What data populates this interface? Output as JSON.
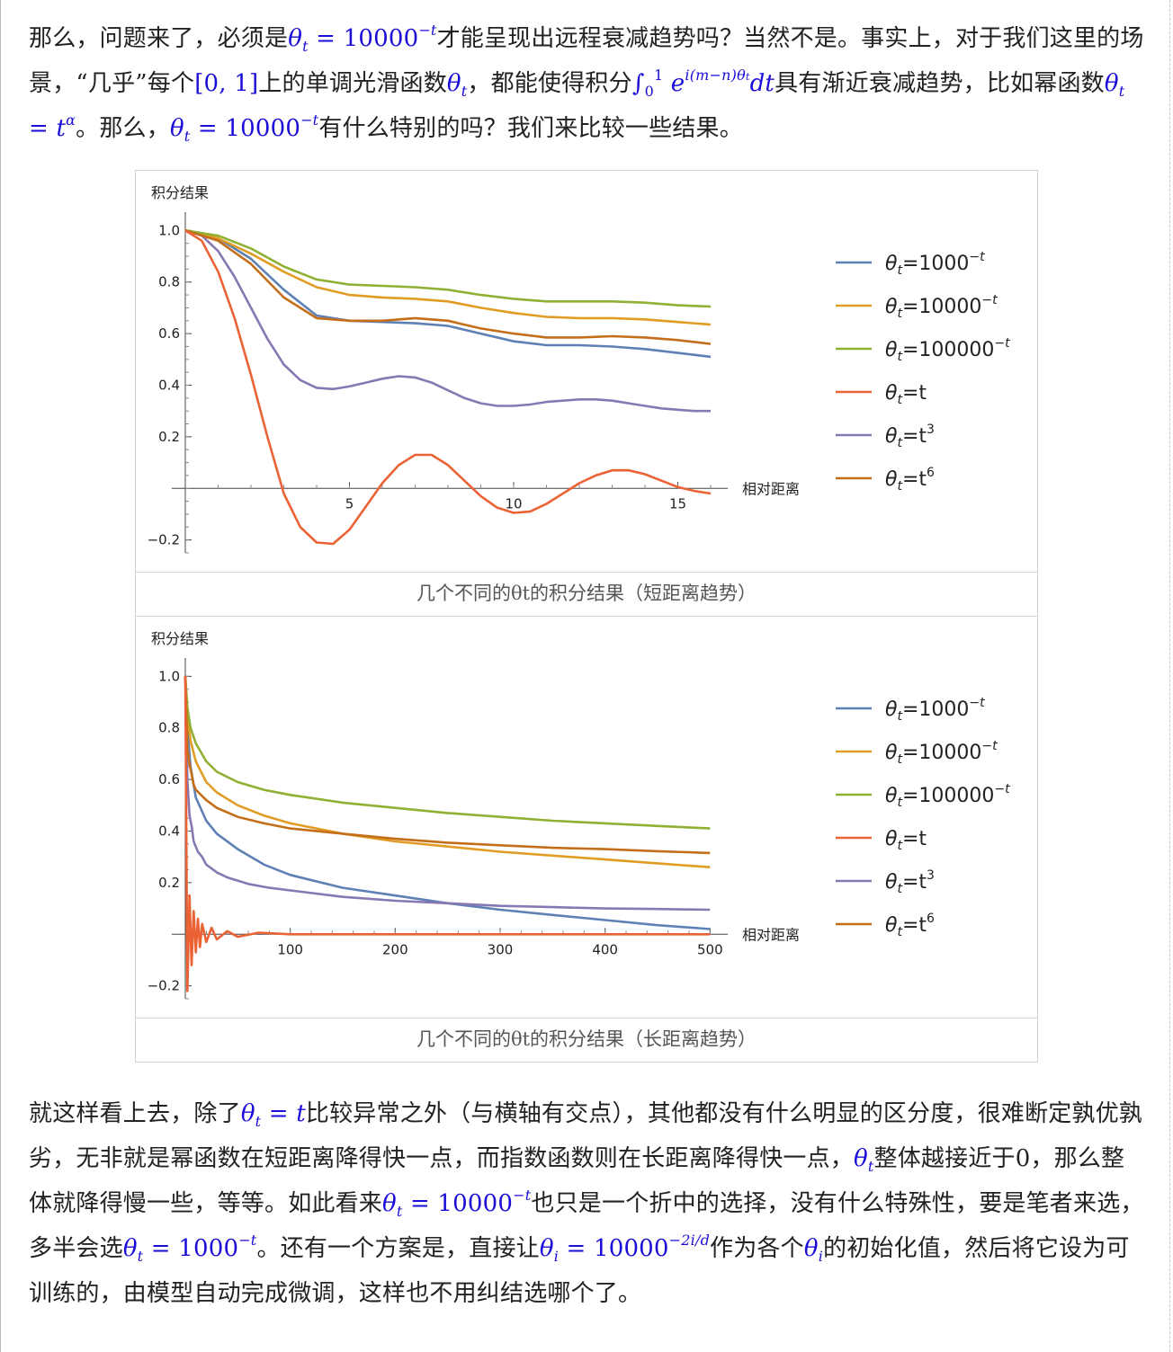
{
  "paragraph1": {
    "t1": "那么，问题来了，必须是",
    "m1": "θ",
    "m1sub": "t",
    "m1eq": " = 10000",
    "m1sup": "−t",
    "t2": "才能呈现出远程衰减趋势吗？当然不是。事实上，对于我们这里的场景，“几乎”每个",
    "m2": "[0, 1]",
    "t3": "上的单调光滑函数",
    "m3": "θ",
    "m3sub": "t",
    "t4": "，都能使得积分",
    "m4": "∫",
    "m4lim_lo": "0",
    "m4lim_hi": "1",
    "m4e": " e",
    "m4sup": "i(m−n)θ",
    "m4supsub": "t",
    "m4dt": "dt",
    "t5": "具有渐近衰减趋势，比如幂函数",
    "m5": "θ",
    "m5sub": "t",
    "m5eq": " = t",
    "m5sup": "α",
    "t6": "。那么，",
    "m6": "θ",
    "m6sub": "t",
    "m6eq": " = 10000",
    "m6sup": "−t",
    "t7": "有什么特别的吗？我们来比较一些结果。"
  },
  "figure1": {
    "caption": "几个不同的θt的积分结果（短距离趋势）",
    "chart_data": {
      "type": "line",
      "title": "",
      "ylabel": "积分结果",
      "xlabel": "相对距离",
      "xlim": [
        0,
        16.3
      ],
      "ylim": [
        -0.25,
        1.05
      ],
      "xticks": [
        5,
        10,
        15
      ],
      "yticks": [
        1.0,
        0.8,
        0.6,
        0.4,
        0.2,
        -0.2
      ],
      "ytick_labels": [
        "1.0",
        "0.8",
        "0.6",
        "0.4",
        "0.2",
        "−0.2"
      ],
      "xtick_labels": [
        "5",
        "10",
        "15"
      ],
      "legend_position": "right",
      "series": [
        {
          "name": "θt=1000^-t",
          "legend_base": "=1000",
          "legend_sup": "−t",
          "color": "#5e81b5",
          "x": [
            0,
            1,
            2,
            3,
            4,
            5,
            6,
            7,
            8,
            9,
            10,
            11,
            12,
            13,
            14,
            15,
            16
          ],
          "y": [
            1.0,
            0.97,
            0.89,
            0.77,
            0.67,
            0.65,
            0.645,
            0.64,
            0.63,
            0.6,
            0.57,
            0.555,
            0.555,
            0.55,
            0.54,
            0.525,
            0.51
          ]
        },
        {
          "name": "θt=10000^-t",
          "legend_base": "=10000",
          "legend_sup": "−t",
          "color": "#e19c24",
          "x": [
            0,
            1,
            2,
            3,
            4,
            5,
            6,
            7,
            8,
            9,
            10,
            11,
            12,
            13,
            14,
            15,
            16
          ],
          "y": [
            1.0,
            0.97,
            0.91,
            0.84,
            0.78,
            0.75,
            0.74,
            0.735,
            0.725,
            0.7,
            0.68,
            0.665,
            0.66,
            0.66,
            0.655,
            0.645,
            0.635
          ]
        },
        {
          "name": "θt=100000^-t",
          "legend_base": "=100000",
          "legend_sup": "−t",
          "color": "#8fb032",
          "x": [
            0,
            1,
            2,
            3,
            4,
            5,
            6,
            7,
            8,
            9,
            10,
            11,
            12,
            13,
            14,
            15,
            16
          ],
          "y": [
            1.0,
            0.98,
            0.93,
            0.86,
            0.81,
            0.79,
            0.785,
            0.78,
            0.77,
            0.75,
            0.735,
            0.725,
            0.725,
            0.725,
            0.72,
            0.71,
            0.705
          ]
        },
        {
          "name": "θt=t",
          "legend_base": "=t",
          "legend_sup": "",
          "color": "#eb6235",
          "x": [
            0,
            0.5,
            1,
            1.5,
            2,
            2.5,
            3,
            3.5,
            4,
            4.5,
            5,
            5.5,
            6,
            6.5,
            7,
            7.5,
            8,
            8.5,
            9,
            9.5,
            10,
            10.5,
            11,
            11.5,
            12,
            12.5,
            13,
            13.5,
            14,
            14.5,
            15,
            15.5,
            16
          ],
          "y": [
            1.0,
            0.96,
            0.84,
            0.66,
            0.44,
            0.2,
            -0.02,
            -0.15,
            -0.21,
            -0.215,
            -0.16,
            -0.07,
            0.02,
            0.09,
            0.13,
            0.13,
            0.09,
            0.03,
            -0.03,
            -0.075,
            -0.095,
            -0.09,
            -0.06,
            -0.02,
            0.02,
            0.05,
            0.07,
            0.07,
            0.055,
            0.03,
            0.005,
            -0.01,
            -0.02
          ]
        },
        {
          "name": "θt=t^3",
          "legend_base": "=t",
          "legend_sup": "3",
          "color": "#8778b3",
          "x": [
            0,
            0.5,
            1,
            1.5,
            2,
            2.5,
            3,
            3.5,
            4,
            4.5,
            5,
            5.5,
            6,
            6.5,
            7,
            7.5,
            8,
            8.5,
            9,
            9.5,
            10,
            10.5,
            11,
            11.5,
            12,
            12.5,
            13,
            13.5,
            14,
            14.5,
            15,
            15.5,
            16
          ],
          "y": [
            1.0,
            0.98,
            0.92,
            0.82,
            0.7,
            0.58,
            0.48,
            0.42,
            0.39,
            0.385,
            0.395,
            0.41,
            0.425,
            0.435,
            0.43,
            0.41,
            0.38,
            0.35,
            0.33,
            0.32,
            0.32,
            0.325,
            0.335,
            0.34,
            0.345,
            0.345,
            0.34,
            0.33,
            0.32,
            0.31,
            0.305,
            0.3,
            0.3
          ]
        },
        {
          "name": "θt=t^6",
          "legend_base": "=t",
          "legend_sup": "6",
          "color": "#c56e1a",
          "x": [
            0,
            1,
            2,
            3,
            4,
            5,
            6,
            7,
            8,
            9,
            10,
            11,
            12,
            13,
            14,
            15,
            16
          ],
          "y": [
            1.0,
            0.96,
            0.87,
            0.74,
            0.66,
            0.65,
            0.65,
            0.66,
            0.65,
            0.62,
            0.6,
            0.585,
            0.585,
            0.59,
            0.585,
            0.575,
            0.56
          ]
        }
      ]
    }
  },
  "figure2": {
    "caption": "几个不同的θt的积分结果（长距离趋势）",
    "chart_data": {
      "type": "line",
      "title": "",
      "ylabel": "积分结果",
      "xlabel": "相对距离",
      "xlim": [
        0,
        510
      ],
      "ylim": [
        -0.25,
        1.05
      ],
      "xticks": [
        100,
        200,
        300,
        400,
        500
      ],
      "yticks": [
        1.0,
        0.8,
        0.6,
        0.4,
        0.2,
        -0.2
      ],
      "ytick_labels": [
        "1.0",
        "0.8",
        "0.6",
        "0.4",
        "0.2",
        "−0.2"
      ],
      "xtick_labels": [
        "100",
        "200",
        "300",
        "400",
        "500"
      ],
      "legend_position": "right",
      "series": [
        {
          "name": "θt=1000^-t",
          "legend_base": "=1000",
          "legend_sup": "−t",
          "color": "#5e81b5",
          "x": [
            0,
            2,
            5,
            10,
            20,
            30,
            50,
            75,
            100,
            150,
            200,
            250,
            300,
            350,
            400,
            450,
            500
          ],
          "y": [
            1.0,
            0.8,
            0.65,
            0.53,
            0.44,
            0.39,
            0.33,
            0.27,
            0.23,
            0.18,
            0.15,
            0.12,
            0.095,
            0.075,
            0.055,
            0.035,
            0.02
          ]
        },
        {
          "name": "θt=10000^-t",
          "legend_base": "=10000",
          "legend_sup": "−t",
          "color": "#e19c24",
          "x": [
            0,
            2,
            5,
            10,
            20,
            30,
            50,
            75,
            100,
            150,
            200,
            250,
            300,
            350,
            400,
            450,
            500
          ],
          "y": [
            1.0,
            0.85,
            0.75,
            0.67,
            0.59,
            0.55,
            0.5,
            0.46,
            0.43,
            0.39,
            0.36,
            0.34,
            0.32,
            0.305,
            0.29,
            0.275,
            0.26
          ]
        },
        {
          "name": "θt=100000^-t",
          "legend_base": "=100000",
          "legend_sup": "−t",
          "color": "#8fb032",
          "x": [
            0,
            2,
            5,
            10,
            20,
            30,
            50,
            75,
            100,
            150,
            200,
            250,
            300,
            350,
            400,
            450,
            500
          ],
          "y": [
            1.0,
            0.88,
            0.8,
            0.74,
            0.67,
            0.63,
            0.59,
            0.56,
            0.54,
            0.51,
            0.49,
            0.47,
            0.455,
            0.44,
            0.43,
            0.42,
            0.41
          ]
        },
        {
          "name": "θt=t",
          "legend_base": "=t",
          "legend_sup": "",
          "color": "#eb6235",
          "x": [
            0,
            2,
            4,
            6,
            8,
            10,
            12,
            14,
            16,
            20,
            25,
            30,
            40,
            50,
            70,
            100,
            200,
            300,
            400,
            500
          ],
          "y": [
            1.0,
            -0.22,
            0.15,
            -0.12,
            0.09,
            -0.07,
            0.06,
            -0.05,
            0.04,
            -0.03,
            0.025,
            -0.02,
            0.012,
            -0.01,
            0.006,
            0.0,
            0.0,
            0.0,
            0.0,
            0.0
          ]
        },
        {
          "name": "θt=t^3",
          "legend_base": "=t",
          "legend_sup": "3",
          "color": "#8778b3",
          "x": [
            0,
            2,
            4,
            6,
            8,
            12,
            16,
            20,
            30,
            40,
            60,
            80,
            100,
            150,
            200,
            250,
            300,
            350,
            400,
            450,
            500
          ],
          "y": [
            1.0,
            0.6,
            0.46,
            0.42,
            0.36,
            0.32,
            0.3,
            0.27,
            0.24,
            0.22,
            0.195,
            0.18,
            0.17,
            0.145,
            0.13,
            0.12,
            0.11,
            0.105,
            0.1,
            0.098,
            0.095
          ]
        },
        {
          "name": "θt=t^6",
          "legend_base": "=t",
          "legend_sup": "6",
          "color": "#c56e1a",
          "x": [
            0,
            2,
            4,
            6,
            8,
            10,
            15,
            20,
            30,
            50,
            75,
            100,
            150,
            200,
            250,
            300,
            350,
            400,
            450,
            500
          ],
          "y": [
            1.0,
            0.72,
            0.66,
            0.62,
            0.58,
            0.56,
            0.54,
            0.52,
            0.49,
            0.455,
            0.43,
            0.41,
            0.39,
            0.37,
            0.355,
            0.345,
            0.335,
            0.33,
            0.322,
            0.315
          ]
        }
      ]
    }
  },
  "paragraph2": {
    "t1": "就这样看上去，除了",
    "m1": "θ",
    "m1sub": "t",
    "m1eq": " = t",
    "t2": "比较异常之外（与横轴有交点），其他都没有什么明显的区分度，很难断定孰优孰劣，无非就是幂函数在短距离降得快一点，而指数函数则在长距离降得快一点，",
    "m2": "θ",
    "m2sub": "t",
    "t3": "整体越接近于0，那么整体就降得慢一些，等等。如此看来",
    "m3": "θ",
    "m3sub": "t",
    "m3eq": " = 10000",
    "m3sup": "−t",
    "t4": "也只是一个折中的选择，没有什么特殊性，要是笔者来选，多半会选",
    "m4": "θ",
    "m4sub": "t",
    "m4eq": " = 1000",
    "m4sup": "−t",
    "t5": "。还有一个方案是，直接让",
    "m5": "θ",
    "m5sub": "i",
    "m5eq": " = 10000",
    "m5sup": "−2i/d",
    "t6": "作为各个",
    "m6": "θ",
    "m6sub": "i",
    "t7": "的初始化值，然后将它设为可训练的，由模型自动完成微调，这样也不用纠结选哪个了。"
  }
}
